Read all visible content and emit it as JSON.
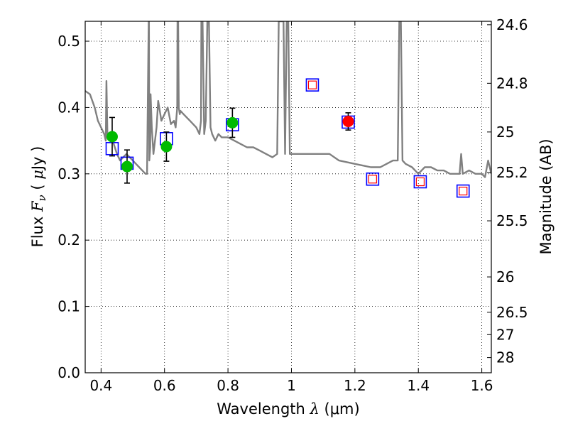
{
  "chart_data": {
    "type": "scatter",
    "title": "",
    "xlabel": "Wavelength  λ (μm)",
    "xlabel_parts": [
      "Wavelength  ",
      "λ",
      " (μm)"
    ],
    "ylabel": "Flux  Fν  ( μJy )",
    "ylabel_parts": [
      "Flux  ",
      "F",
      "ν",
      "  ( ",
      "μ",
      "Jy )"
    ],
    "y2label": "Magnitude (AB)",
    "xlim": [
      0.35,
      1.63
    ],
    "ylim": [
      0.0,
      0.53
    ],
    "xticks": [
      0.4,
      0.6,
      0.8,
      1.0,
      1.2,
      1.4,
      1.6
    ],
    "xtick_labels": [
      "0.4",
      "0.6",
      "0.8",
      "1",
      "1.2",
      "1.4",
      "1.6"
    ],
    "yticks": [
      0.0,
      0.1,
      0.2,
      0.3,
      0.4,
      0.5
    ],
    "ytick_labels": [
      "0.0",
      "0.1",
      "0.2",
      "0.3",
      "0.4",
      "0.5"
    ],
    "y2ticks": [
      {
        "label": "24.6",
        "flux": 0.5248
      },
      {
        "label": "24.8",
        "flux": 0.4365
      },
      {
        "label": "25",
        "flux": 0.3631
      },
      {
        "label": "25.2",
        "flux": 0.302
      },
      {
        "label": "25.5",
        "flux": 0.2291
      },
      {
        "label": "26",
        "flux": 0.1445
      },
      {
        "label": "26.5",
        "flux": 0.0912
      },
      {
        "label": "27",
        "flux": 0.0575
      },
      {
        "label": "28",
        "flux": 0.0229
      }
    ],
    "grid": true,
    "colors": {
      "model": "#808080",
      "model_boxes": "#0000ff",
      "upper_limits": "#ff0000",
      "detections_green": "#00bb00",
      "detections_red": "#ff0000",
      "errorbars": "#000000"
    },
    "series": [
      {
        "name": "model spectrum",
        "style": "line",
        "x": [
          0.35,
          0.365,
          0.38,
          0.39,
          0.4,
          0.41,
          0.415,
          0.417,
          0.42,
          0.43,
          0.44,
          0.45,
          0.46,
          0.47,
          0.48,
          0.49,
          0.5,
          0.51,
          0.52,
          0.53,
          0.54,
          0.545,
          0.55,
          0.551,
          0.552,
          0.555,
          0.556,
          0.56,
          0.565,
          0.57,
          0.575,
          0.58,
          0.59,
          0.6,
          0.61,
          0.62,
          0.63,
          0.635,
          0.64,
          0.641,
          0.643,
          0.645,
          0.648,
          0.65,
          0.66,
          0.68,
          0.7,
          0.71,
          0.715,
          0.716,
          0.72,
          0.725,
          0.73,
          0.735,
          0.74,
          0.745,
          0.75,
          0.76,
          0.77,
          0.78,
          0.79,
          0.8,
          0.82,
          0.84,
          0.86,
          0.88,
          0.9,
          0.92,
          0.94,
          0.955,
          0.96,
          0.962,
          0.97,
          0.975,
          0.98,
          0.985,
          0.99,
          0.995,
          1.0,
          1.01,
          1.05,
          1.08,
          1.1,
          1.12,
          1.15,
          1.2,
          1.25,
          1.28,
          1.3,
          1.32,
          1.335,
          1.34,
          1.345,
          1.35,
          1.36,
          1.38,
          1.4,
          1.42,
          1.44,
          1.46,
          1.48,
          1.5,
          1.52,
          1.53,
          1.535,
          1.54,
          1.56,
          1.58,
          1.6,
          1.61,
          1.62,
          1.63
        ],
        "y": [
          0.425,
          0.42,
          0.4,
          0.38,
          0.37,
          0.36,
          0.35,
          0.44,
          0.36,
          0.355,
          0.345,
          0.33,
          0.32,
          0.325,
          0.33,
          0.325,
          0.32,
          0.315,
          0.31,
          0.305,
          0.3,
          0.3,
          0.53,
          0.53,
          0.32,
          0.34,
          0.42,
          0.37,
          0.33,
          0.35,
          0.37,
          0.41,
          0.38,
          0.39,
          0.4,
          0.375,
          0.38,
          0.37,
          0.4,
          0.53,
          0.53,
          0.4,
          0.39,
          0.395,
          0.39,
          0.38,
          0.37,
          0.36,
          0.38,
          0.53,
          0.53,
          0.36,
          0.38,
          0.53,
          0.53,
          0.37,
          0.36,
          0.35,
          0.36,
          0.355,
          0.355,
          0.355,
          0.35,
          0.345,
          0.34,
          0.34,
          0.335,
          0.33,
          0.325,
          0.33,
          0.53,
          0.53,
          0.53,
          0.53,
          0.33,
          0.53,
          0.53,
          0.33,
          0.33,
          0.33,
          0.33,
          0.33,
          0.33,
          0.33,
          0.32,
          0.315,
          0.31,
          0.31,
          0.315,
          0.32,
          0.32,
          0.53,
          0.53,
          0.32,
          0.315,
          0.31,
          0.3,
          0.31,
          0.31,
          0.305,
          0.305,
          0.3,
          0.3,
          0.3,
          0.33,
          0.3,
          0.305,
          0.3,
          0.3,
          0.295,
          0.32,
          0.3
        ]
      },
      {
        "name": "model bandpass fluxes",
        "style": "open-square",
        "x": [
          0.435,
          0.482,
          0.606,
          0.814,
          1.066,
          1.179,
          1.256,
          1.406,
          1.541
        ],
        "y": [
          0.338,
          0.316,
          0.353,
          0.374,
          0.434,
          0.378,
          0.292,
          0.288,
          0.274
        ]
      },
      {
        "name": "upper limits",
        "style": "small-open-square",
        "x": [
          1.066,
          1.256,
          1.406,
          1.541
        ],
        "y": [
          0.434,
          0.292,
          0.288,
          0.274
        ]
      },
      {
        "name": "detections",
        "style": "filled-circle",
        "x": [
          0.435,
          0.482,
          0.606,
          0.814
        ],
        "y": [
          0.356,
          0.311,
          0.341,
          0.377
        ],
        "yerr": [
          0.029,
          0.025,
          0.022,
          0.022
        ]
      },
      {
        "name": "detection (red)",
        "style": "filled-circle-red",
        "x": [
          1.179
        ],
        "y": [
          0.379
        ],
        "yerr": [
          0.013
        ]
      }
    ]
  }
}
